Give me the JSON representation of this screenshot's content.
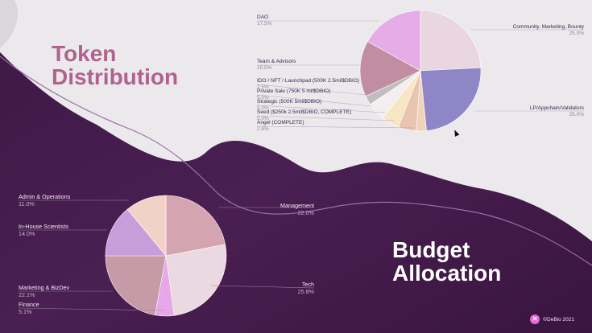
{
  "token_title": [
    "Token",
    "Distribution"
  ],
  "budget_title": [
    "Budget",
    "Allocation"
  ],
  "footer": "©DeBio 2021",
  "footer_logo_icon": "debio-x-icon",
  "chart_data": [
    {
      "type": "pie",
      "title": "Token Distribution",
      "slices": [
        {
          "name": "Community, Marketing, Bounty",
          "label": "25.0%",
          "value": 25.0,
          "color": "#e9d6de"
        },
        {
          "name": "LP/Appchain/Validators",
          "label": "25.0%",
          "value": 25.0,
          "color": "#8f86c8"
        },
        {
          "name": "Angel (COMPLETE)",
          "label": "2.8%",
          "value": 2.8,
          "color": "#f1d3bc"
        },
        {
          "name": "Seed ($250k 2.5mil$DBIO, COMPLETE)",
          "label": "5.0%",
          "value": 5.0,
          "color": "#e9c5b1"
        },
        {
          "name": "Strategic (500K 5mil$DBIO)",
          "label": "5.0%",
          "value": 5.0,
          "color": "#f7e6c4"
        },
        {
          "name": "Private Sale (750K 5 mil$DBIO)",
          "label": "5.0%",
          "value": 5.0,
          "color": "#f4eef1"
        },
        {
          "name": "IDO / NFT / Launchpad (500K 2.5mil$DBIO)",
          "label": "2.5%",
          "value": 2.5,
          "color": "#c0bcc0"
        },
        {
          "name": "Team & Advisors",
          "label": "15.5%",
          "value": 15.5,
          "color": "#c18da1"
        },
        {
          "name": "DAO",
          "label": "17.5%",
          "value": 17.5,
          "color": "#e6ace6"
        }
      ]
    },
    {
      "type": "pie",
      "title": "Budget Allocation",
      "slices": [
        {
          "name": "Management",
          "label": "22.0%",
          "value": 22.0,
          "color": "#d5a4b1"
        },
        {
          "name": "Tech",
          "label": "25.8%",
          "value": 25.8,
          "color": "#ead9e0"
        },
        {
          "name": "Finance",
          "label": "5.1%",
          "value": 5.1,
          "color": "#e6a8e6"
        },
        {
          "name": "Marketing & BizDev",
          "label": "22.1%",
          "value": 22.1,
          "color": "#c79aa8"
        },
        {
          "name": "In-House Scientists",
          "label": "14.0%",
          "value": 14.0,
          "color": "#c79ed9"
        },
        {
          "name": "Admin & Operations",
          "label": "11.0%",
          "value": 11.0,
          "color": "#f2d1c7"
        }
      ]
    }
  ]
}
